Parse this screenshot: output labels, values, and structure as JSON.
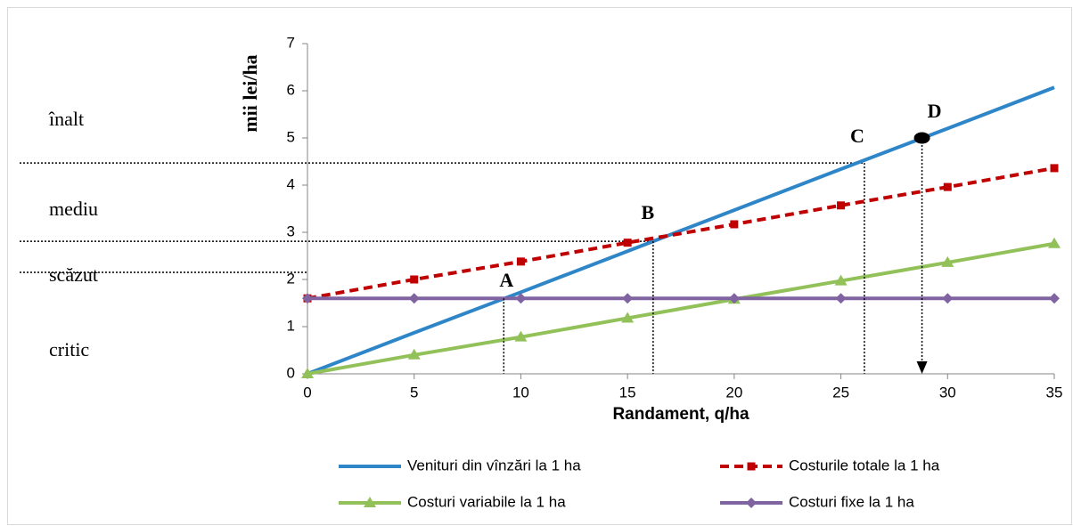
{
  "chart_data": {
    "type": "line",
    "ylabel": "mii  lei/ha",
    "xlabel": "Randament, q/ha",
    "x": [
      0,
      5,
      10,
      15,
      20,
      25,
      30,
      35
    ],
    "xlim": [
      0,
      35
    ],
    "xticks": [
      0,
      5,
      10,
      15,
      20,
      25,
      30,
      35
    ],
    "ylim": [
      0,
      7
    ],
    "yticks": [
      0,
      1,
      2,
      3,
      4,
      5,
      6,
      7
    ],
    "series": [
      {
        "name": "Venituri din vînzări la 1 ha",
        "color": "#2e86c8",
        "marker": "none",
        "dash": false,
        "values": [
          0,
          0.87,
          1.73,
          2.6,
          3.47,
          4.34,
          5.2,
          6.07
        ]
      },
      {
        "name": "Costurile totale la 1 ha",
        "color": "#c00000",
        "marker": "square",
        "dash": true,
        "values": [
          1.6,
          2.0,
          2.38,
          2.78,
          3.17,
          3.57,
          3.96,
          4.36
        ]
      },
      {
        "name": "Costuri variabile la 1 ha",
        "color": "#92c15a",
        "marker": "triangle",
        "dash": false,
        "values": [
          0,
          0.4,
          0.78,
          1.18,
          1.58,
          1.97,
          2.36,
          2.76
        ]
      },
      {
        "name": "Costuri fixe la 1 ha",
        "color": "#8064a2",
        "marker": "diamond",
        "dash": false,
        "values": [
          1.6,
          1.6,
          1.6,
          1.6,
          1.6,
          1.6,
          1.6,
          1.6
        ]
      }
    ],
    "levels": [
      "înalt",
      "mediu",
      "scăzut",
      "critic"
    ],
    "guides": [
      {
        "y": 4.47,
        "x": 26.1
      },
      {
        "y": 2.81,
        "x": 16.2
      },
      {
        "y": 2.15,
        "x": 0
      }
    ],
    "points": [
      {
        "label": "A",
        "x": 9.2,
        "y": 1.6
      },
      {
        "label": "B",
        "x": 16.2,
        "y": 2.81
      },
      {
        "label": "C",
        "x": 26.1,
        "y": 4.47
      },
      {
        "label": "D",
        "x": 28.8,
        "y": 5.0
      }
    ]
  }
}
